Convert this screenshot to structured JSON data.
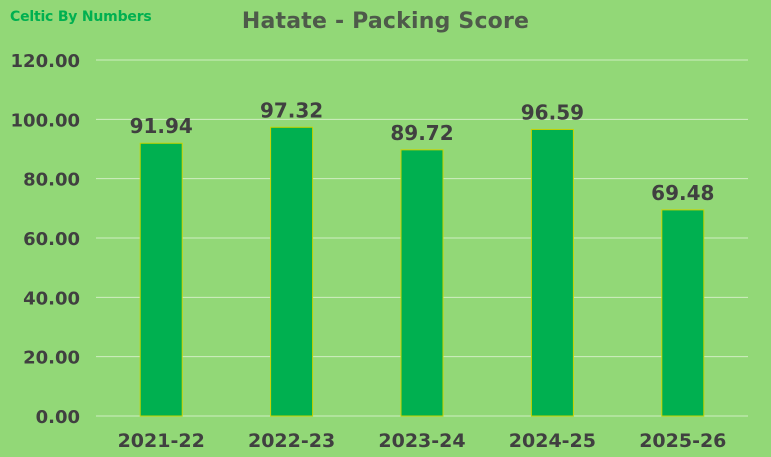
{
  "watermark": "Celtic By Numbers",
  "chart_data": {
    "type": "bar",
    "title": "Hatate - Packing Score",
    "categories": [
      "2021-22",
      "2022-23",
      "2023-24",
      "2024-25",
      "2025-26"
    ],
    "values": [
      91.94,
      97.32,
      89.72,
      96.59,
      69.48
    ],
    "value_labels": [
      "91.94",
      "97.32",
      "89.72",
      "96.59",
      "69.48"
    ],
    "y_ticks": [
      "0.00",
      "20.00",
      "40.00",
      "60.00",
      "80.00",
      "100.00",
      "120.00"
    ],
    "ylim": [
      0,
      120
    ],
    "xlabel": "",
    "ylabel": "",
    "grid": true,
    "legend": "none",
    "colors": {
      "background": "#92d877",
      "bar_fill": "#00b050",
      "bar_edge": "#c8d400",
      "gridline": "#cfeec2",
      "label_text": "#404040",
      "title_text": "#4e5a4a"
    }
  }
}
